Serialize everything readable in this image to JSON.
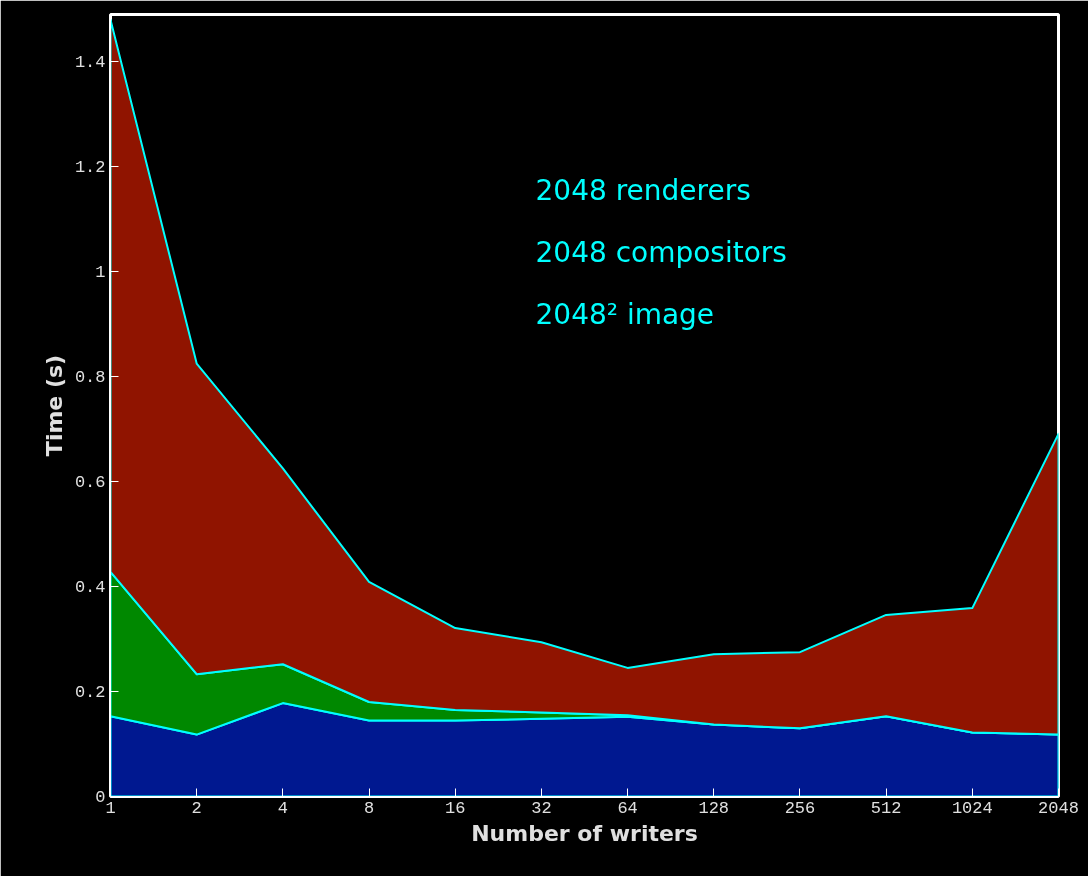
{
  "chart_data": {
    "type": "area",
    "stacked": true,
    "xlabel": "Number of writers",
    "ylabel": "Time (s)",
    "categories": [
      "1",
      "2",
      "4",
      "8",
      "16",
      "32",
      "64",
      "128",
      "256",
      "512",
      "1024",
      "2048"
    ],
    "series": [
      {
        "color": "#001890",
        "values": [
          0.153,
          0.118,
          0.178,
          0.145,
          0.145,
          0.148,
          0.152,
          0.137,
          0.13,
          0.153,
          0.122,
          0.118
        ]
      },
      {
        "color": "#008800",
        "values": [
          0.275,
          0.115,
          0.074,
          0.035,
          0.02,
          0.012,
          0.003,
          0,
          0,
          0,
          0,
          0
        ]
      },
      {
        "color": "#901400",
        "values": [
          1.052,
          0.592,
          0.373,
          0.229,
          0.156,
          0.134,
          0.09,
          0.134,
          0.145,
          0.193,
          0.237,
          0.573
        ]
      }
    ],
    "ylim": [
      0,
      1.49
    ],
    "yticks": [
      0,
      0.2,
      0.4,
      0.6,
      0.8,
      1,
      1.2,
      1.4
    ],
    "annotations": [
      "2048 renderers",
      "2048 compositors",
      "2048² image"
    ],
    "grid": false
  }
}
